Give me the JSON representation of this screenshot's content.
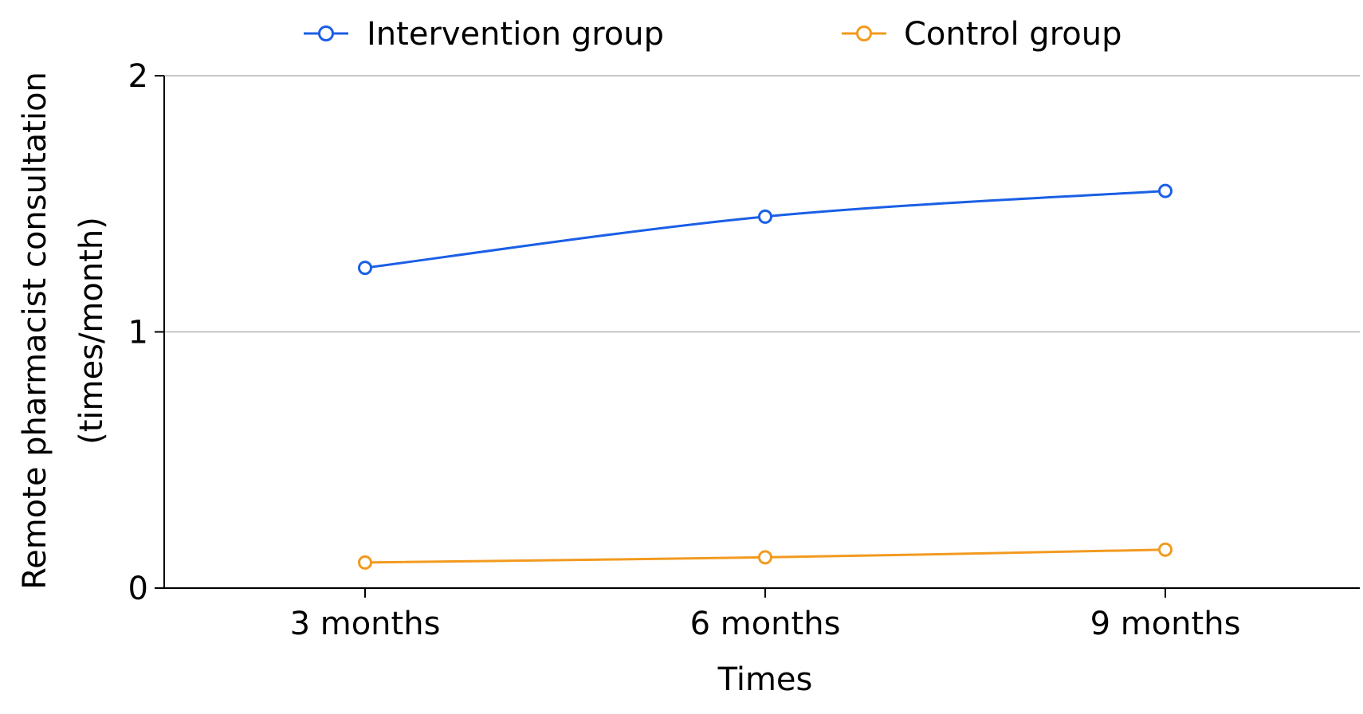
{
  "chart_data": {
    "type": "line",
    "title": "",
    "xlabel": "Times",
    "ylabel_lines": [
      "Remote pharmacist consultation",
      "(times/month)"
    ],
    "categories": [
      "3 months",
      "6 months",
      "9 months"
    ],
    "yticks": [
      "0",
      "1",
      "2"
    ],
    "ylim": [
      0,
      2
    ],
    "grid": "horizontal",
    "legend_position": "top",
    "series": [
      {
        "name": "Intervention group",
        "color": "#1a5fe6",
        "values": [
          1.25,
          1.45,
          1.55
        ]
      },
      {
        "name": "Control group",
        "color": "#f29a1f",
        "values": [
          0.1,
          0.12,
          0.15
        ]
      }
    ]
  }
}
